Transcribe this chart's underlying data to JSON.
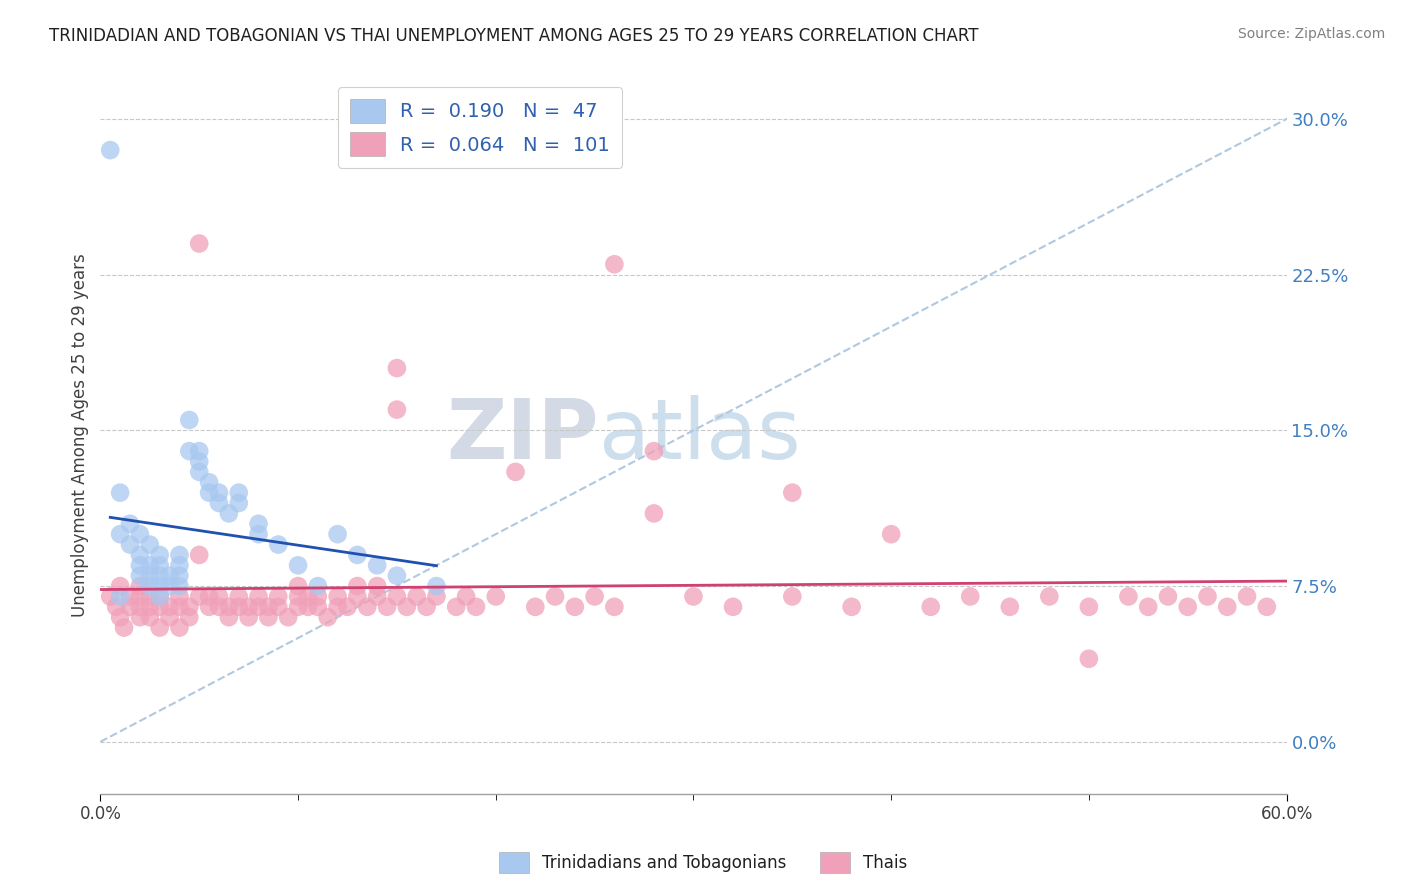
{
  "title": "TRINIDADIAN AND TOBAGONIAN VS THAI UNEMPLOYMENT AMONG AGES 25 TO 29 YEARS CORRELATION CHART",
  "source": "Source: ZipAtlas.com",
  "ylabel": "Unemployment Among Ages 25 to 29 years",
  "xlim": [
    0.0,
    0.6
  ],
  "ylim": [
    -0.025,
    0.32
  ],
  "xtick_positions": [
    0.0,
    0.6
  ],
  "xticklabels": [
    "0.0%",
    "60.0%"
  ],
  "yticks": [
    0.0,
    0.075,
    0.15,
    0.225,
    0.3
  ],
  "yticklabels": [
    "0.0%",
    "7.5%",
    "15.0%",
    "22.5%",
    "30.0%"
  ],
  "blue_color": "#a8c8f0",
  "pink_color": "#f0a0b8",
  "blue_line_color": "#2050b0",
  "pink_line_color": "#d04070",
  "blue_R": 0.19,
  "blue_N": 47,
  "pink_R": 0.064,
  "pink_N": 101,
  "legend_label_blue": "Trinidadians and Tobagonians",
  "legend_label_pink": "Thais",
  "watermark_zip": "ZIP",
  "watermark_atlas": "atlas",
  "blue_scatter_x": [
    0.005,
    0.01,
    0.01,
    0.01,
    0.015,
    0.015,
    0.02,
    0.02,
    0.02,
    0.02,
    0.025,
    0.025,
    0.025,
    0.025,
    0.03,
    0.03,
    0.03,
    0.03,
    0.03,
    0.035,
    0.035,
    0.04,
    0.04,
    0.04,
    0.04,
    0.045,
    0.045,
    0.05,
    0.05,
    0.05,
    0.055,
    0.055,
    0.06,
    0.06,
    0.065,
    0.07,
    0.07,
    0.08,
    0.08,
    0.09,
    0.1,
    0.11,
    0.12,
    0.13,
    0.14,
    0.15,
    0.17
  ],
  "blue_scatter_y": [
    0.285,
    0.07,
    0.1,
    0.12,
    0.095,
    0.105,
    0.08,
    0.085,
    0.09,
    0.1,
    0.075,
    0.08,
    0.085,
    0.095,
    0.07,
    0.075,
    0.08,
    0.085,
    0.09,
    0.075,
    0.08,
    0.075,
    0.08,
    0.085,
    0.09,
    0.14,
    0.155,
    0.13,
    0.135,
    0.14,
    0.12,
    0.125,
    0.115,
    0.12,
    0.11,
    0.115,
    0.12,
    0.1,
    0.105,
    0.095,
    0.085,
    0.075,
    0.1,
    0.09,
    0.085,
    0.08,
    0.075
  ],
  "pink_scatter_x": [
    0.005,
    0.008,
    0.01,
    0.01,
    0.012,
    0.015,
    0.015,
    0.02,
    0.02,
    0.02,
    0.02,
    0.025,
    0.025,
    0.025,
    0.03,
    0.03,
    0.03,
    0.035,
    0.035,
    0.04,
    0.04,
    0.04,
    0.045,
    0.045,
    0.05,
    0.05,
    0.05,
    0.055,
    0.055,
    0.06,
    0.06,
    0.065,
    0.065,
    0.07,
    0.07,
    0.075,
    0.075,
    0.08,
    0.08,
    0.085,
    0.085,
    0.09,
    0.09,
    0.095,
    0.1,
    0.1,
    0.1,
    0.105,
    0.105,
    0.11,
    0.11,
    0.115,
    0.12,
    0.12,
    0.125,
    0.13,
    0.13,
    0.135,
    0.14,
    0.14,
    0.145,
    0.15,
    0.15,
    0.155,
    0.16,
    0.165,
    0.17,
    0.18,
    0.185,
    0.19,
    0.2,
    0.21,
    0.22,
    0.23,
    0.24,
    0.25,
    0.26,
    0.28,
    0.3,
    0.32,
    0.35,
    0.38,
    0.4,
    0.42,
    0.44,
    0.46,
    0.48,
    0.5,
    0.52,
    0.53,
    0.54,
    0.55,
    0.56,
    0.57,
    0.58,
    0.59,
    0.26,
    0.28,
    0.15,
    0.35,
    0.5
  ],
  "pink_scatter_y": [
    0.07,
    0.065,
    0.06,
    0.075,
    0.055,
    0.065,
    0.07,
    0.06,
    0.065,
    0.07,
    0.075,
    0.06,
    0.065,
    0.07,
    0.055,
    0.065,
    0.07,
    0.06,
    0.065,
    0.055,
    0.065,
    0.07,
    0.06,
    0.065,
    0.24,
    0.09,
    0.07,
    0.065,
    0.07,
    0.065,
    0.07,
    0.06,
    0.065,
    0.065,
    0.07,
    0.06,
    0.065,
    0.065,
    0.07,
    0.06,
    0.065,
    0.065,
    0.07,
    0.06,
    0.065,
    0.07,
    0.075,
    0.065,
    0.07,
    0.065,
    0.07,
    0.06,
    0.065,
    0.07,
    0.065,
    0.07,
    0.075,
    0.065,
    0.07,
    0.075,
    0.065,
    0.18,
    0.07,
    0.065,
    0.07,
    0.065,
    0.07,
    0.065,
    0.07,
    0.065,
    0.07,
    0.13,
    0.065,
    0.07,
    0.065,
    0.07,
    0.065,
    0.14,
    0.07,
    0.065,
    0.07,
    0.065,
    0.1,
    0.065,
    0.07,
    0.065,
    0.07,
    0.065,
    0.07,
    0.065,
    0.07,
    0.065,
    0.07,
    0.065,
    0.07,
    0.065,
    0.23,
    0.11,
    0.16,
    0.12,
    0.04
  ]
}
